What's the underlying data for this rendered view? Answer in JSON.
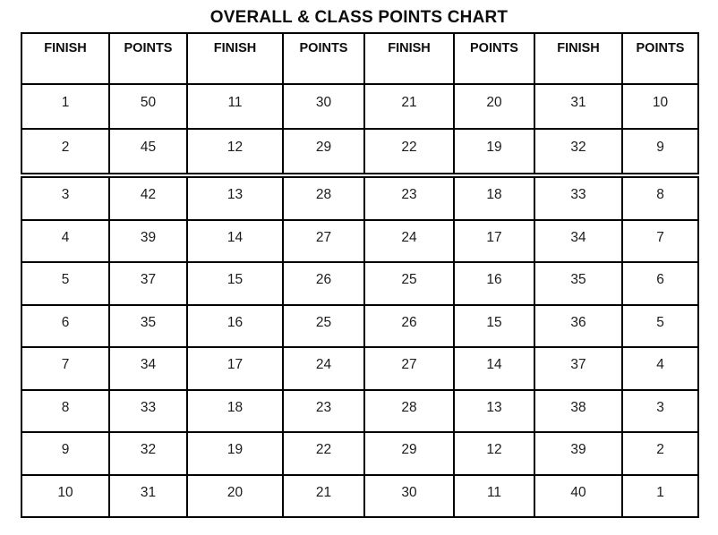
{
  "title": "OVERALL & CLASS POINTS CHART",
  "table": {
    "headers": [
      "FINISH",
      "POINTS",
      "FINISH",
      "POINTS",
      "FINISH",
      "POINTS",
      "FINISH",
      "POINTS"
    ],
    "top_rows": [
      [
        "1",
        "50",
        "11",
        "30",
        "21",
        "20",
        "31",
        "10"
      ],
      [
        "2",
        "45",
        "12",
        "29",
        "22",
        "19",
        "32",
        "9"
      ]
    ],
    "bottom_rows": [
      [
        "3",
        "42",
        "13",
        "28",
        "23",
        "18",
        "33",
        "8"
      ],
      [
        "4",
        "39",
        "14",
        "27",
        "24",
        "17",
        "34",
        "7"
      ],
      [
        "5",
        "37",
        "15",
        "26",
        "25",
        "16",
        "35",
        "6"
      ],
      [
        "6",
        "35",
        "16",
        "25",
        "26",
        "15",
        "36",
        "5"
      ],
      [
        "7",
        "34",
        "17",
        "24",
        "27",
        "14",
        "37",
        "4"
      ],
      [
        "8",
        "33",
        "18",
        "23",
        "28",
        "13",
        "38",
        "3"
      ],
      [
        "9",
        "32",
        "19",
        "22",
        "29",
        "12",
        "39",
        "2"
      ],
      [
        "10",
        "31",
        "20",
        "21",
        "30",
        "11",
        "40",
        "1"
      ]
    ]
  },
  "colors": {
    "border": "#000000",
    "text": "#1c1c1c",
    "background": "#ffffff"
  },
  "chart_data": {
    "type": "table",
    "title": "OVERALL & CLASS POINTS CHART",
    "columns": [
      "FINISH",
      "POINTS"
    ],
    "finish_positions": [
      1,
      2,
      3,
      4,
      5,
      6,
      7,
      8,
      9,
      10,
      11,
      12,
      13,
      14,
      15,
      16,
      17,
      18,
      19,
      20,
      21,
      22,
      23,
      24,
      25,
      26,
      27,
      28,
      29,
      30,
      31,
      32,
      33,
      34,
      35,
      36,
      37,
      38,
      39,
      40
    ],
    "points": [
      50,
      45,
      42,
      39,
      37,
      35,
      34,
      33,
      32,
      31,
      30,
      29,
      28,
      27,
      26,
      25,
      24,
      23,
      22,
      21,
      20,
      19,
      18,
      17,
      16,
      15,
      14,
      13,
      12,
      11,
      10,
      9,
      8,
      7,
      6,
      5,
      4,
      3,
      2,
      1
    ]
  }
}
